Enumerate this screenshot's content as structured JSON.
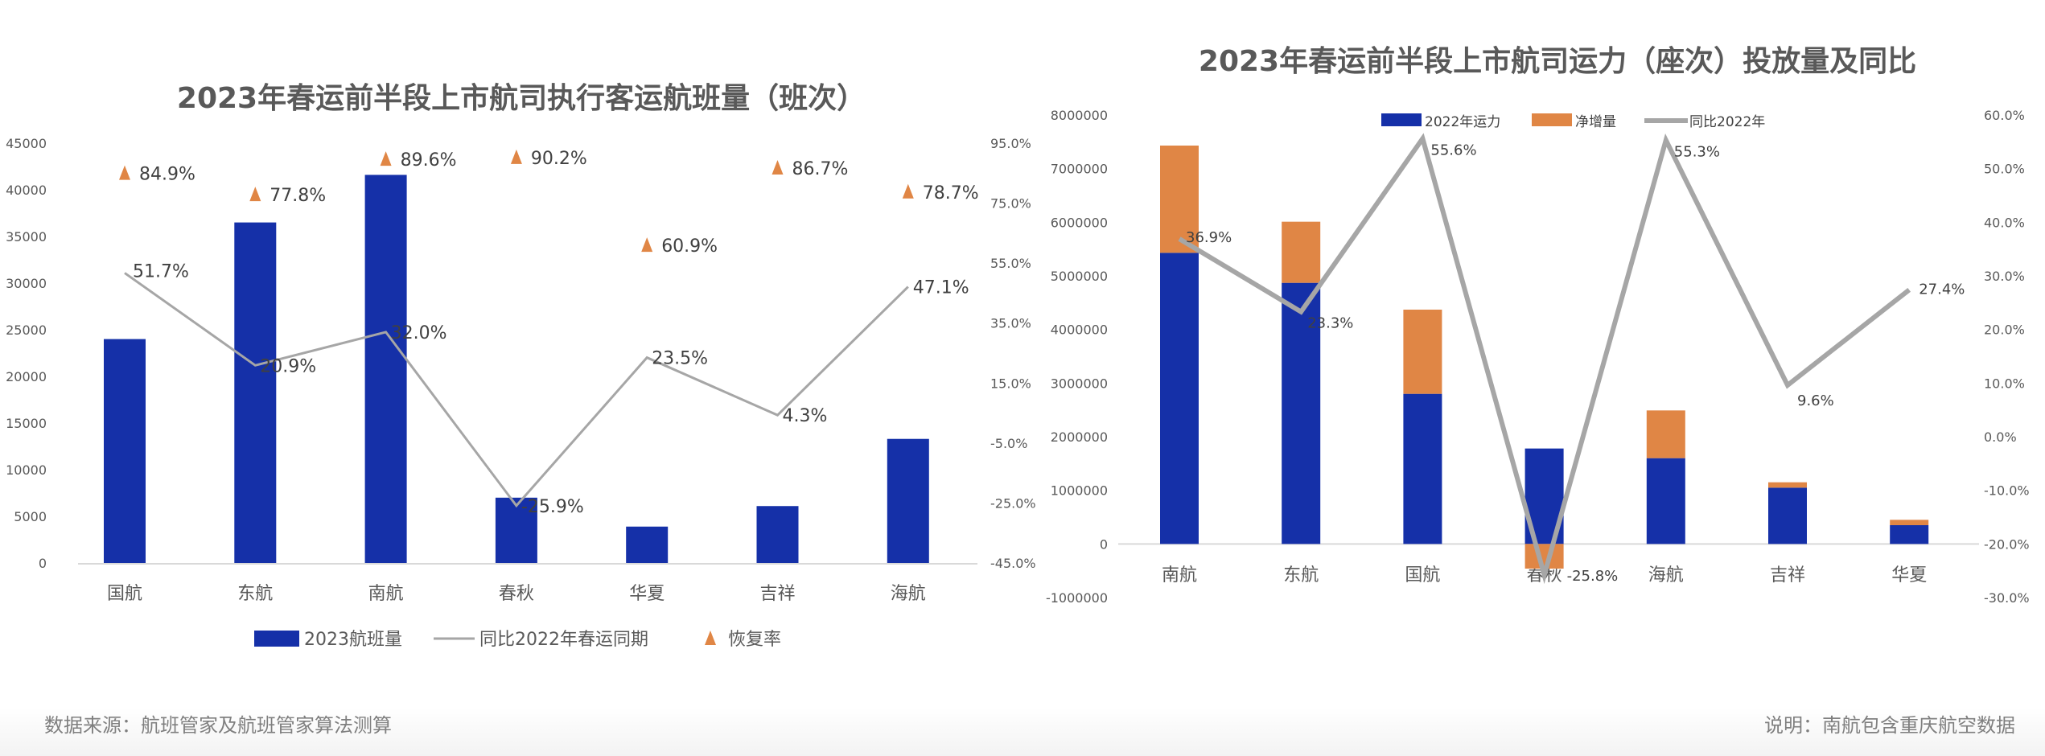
{
  "colors": {
    "bar": "#1530a8",
    "increase": "#e08645",
    "line": "#a6a6a6",
    "triangle": "#e08645",
    "text": "#595959"
  },
  "chart_data": [
    {
      "type": "bar+line",
      "title": "2023年春运前半段上市航司执行客运航班量（班次）",
      "categories": [
        "国航",
        "东航",
        "南航",
        "春秋",
        "华夏",
        "吉祥",
        "海航"
      ],
      "y_left": {
        "lim": [
          0,
          45000
        ],
        "ticks": [
          "0",
          "5000",
          "10000",
          "15000",
          "20000",
          "25000",
          "30000",
          "35000",
          "40000",
          "45000"
        ]
      },
      "y_right": {
        "lim": [
          -45,
          95
        ],
        "ticks": [
          "-45.0%",
          "-25.0%",
          "-5.0%",
          "15.0%",
          "35.0%",
          "55.0%",
          "75.0%",
          "95.0%"
        ]
      },
      "series": [
        {
          "name": "2023航班量",
          "type": "bar",
          "axis": "left",
          "values": [
            24000,
            36500,
            41600,
            7000,
            3900,
            6100,
            13300
          ]
        },
        {
          "name": "同比2022年春运同期",
          "type": "line",
          "axis": "right",
          "values": [
            51.7,
            20.9,
            32.0,
            -25.9,
            23.5,
            4.3,
            47.1
          ],
          "labels": [
            "51.7%",
            "20.9%",
            "32.0%",
            "-25.9%",
            "23.5%",
            "4.3%",
            "47.1%"
          ]
        },
        {
          "name": "恢复率",
          "type": "marker",
          "marker": "triangle",
          "axis": "right",
          "values": [
            84.9,
            77.8,
            89.6,
            90.2,
            60.9,
            86.7,
            78.7
          ],
          "labels": [
            "84.9%",
            "77.8%",
            "89.6%",
            "90.2%",
            "60.9%",
            "86.7%",
            "78.7%"
          ]
        }
      ],
      "legend": "bottom"
    },
    {
      "type": "stacked-bar+line",
      "title": "2023年春运前半段上市航司运力（座次）投放量及同比",
      "categories": [
        "南航",
        "东航",
        "国航",
        "春秋",
        "海航",
        "吉祥",
        "华夏"
      ],
      "y_left": {
        "lim": [
          -1000000,
          8000000
        ],
        "ticks": [
          "-1000000",
          "0",
          "1000000",
          "2000000",
          "3000000",
          "4000000",
          "5000000",
          "6000000",
          "7000000",
          "8000000"
        ]
      },
      "y_right": {
        "lim": [
          -30,
          60
        ],
        "ticks": [
          "-30.0%",
          "-20.0%",
          "-10.0%",
          "0.0%",
          "10.0%",
          "20.0%",
          "30.0%",
          "40.0%",
          "50.0%",
          "60.0%"
        ]
      },
      "series": [
        {
          "name": "2022年运力",
          "type": "bar",
          "axis": "left",
          "values": [
            5430000,
            4870000,
            2800000,
            1780000,
            1600000,
            1050000,
            350000
          ]
        },
        {
          "name": "净增量",
          "type": "bar",
          "axis": "left",
          "values": [
            2000000,
            1140000,
            1570000,
            -460000,
            890000,
            100000,
            100000
          ]
        },
        {
          "name": "同比2022年",
          "type": "line",
          "axis": "right",
          "values": [
            36.9,
            23.3,
            55.6,
            -25.8,
            55.3,
            9.6,
            27.4
          ],
          "labels": [
            "36.9%",
            "23.3%",
            "55.6%",
            "-25.8%",
            "55.3%",
            "9.6%",
            "27.4%"
          ]
        }
      ],
      "legend": "top"
    }
  ],
  "footer": {
    "source": "数据来源：航班管家及航班管家算法测算",
    "note": "说明：南航包含重庆航空数据"
  }
}
